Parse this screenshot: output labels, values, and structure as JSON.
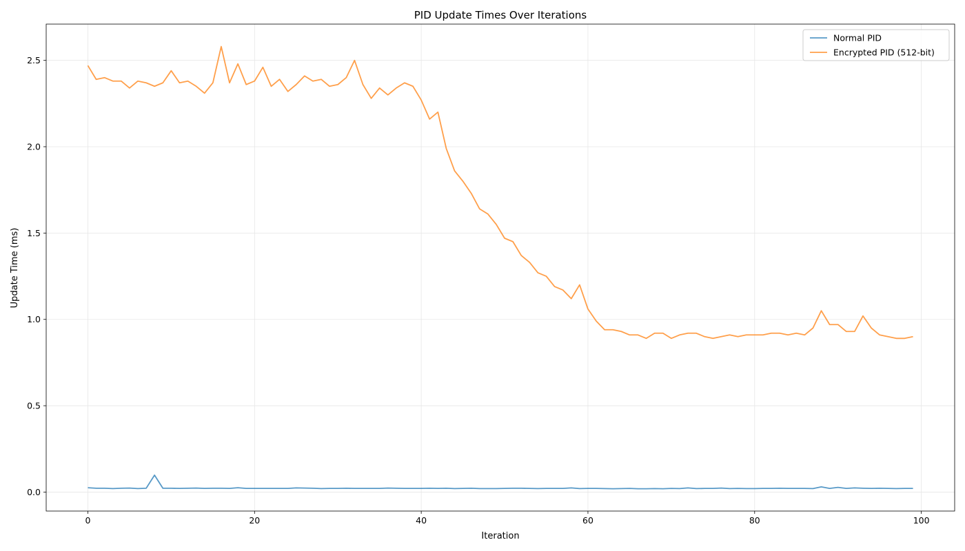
{
  "chart_data": {
    "type": "line",
    "title": "PID Update Times Over Iterations",
    "xlabel": "Iteration",
    "ylabel": "Update Time (ms)",
    "xlim": [
      -5,
      104
    ],
    "ylim": [
      -0.11,
      2.71
    ],
    "xticks": [
      0,
      20,
      40,
      60,
      80,
      100
    ],
    "yticks": [
      0.0,
      0.5,
      1.0,
      1.5,
      2.0,
      2.5
    ],
    "xtick_labels": [
      "0",
      "20",
      "40",
      "60",
      "80",
      "100"
    ],
    "ytick_labels": [
      "0.0",
      "0.5",
      "1.0",
      "1.5",
      "2.0",
      "2.5"
    ],
    "grid": true,
    "legend_position": "top-right",
    "series": [
      {
        "name": "Normal PID",
        "color": "#1f77b4",
        "values": [
          0.025,
          0.022,
          0.022,
          0.02,
          0.022,
          0.023,
          0.02,
          0.022,
          0.098,
          0.022,
          0.022,
          0.021,
          0.022,
          0.023,
          0.021,
          0.022,
          0.022,
          0.021,
          0.025,
          0.021,
          0.021,
          0.021,
          0.021,
          0.021,
          0.021,
          0.024,
          0.023,
          0.022,
          0.02,
          0.021,
          0.021,
          0.022,
          0.021,
          0.021,
          0.021,
          0.021,
          0.023,
          0.022,
          0.021,
          0.021,
          0.021,
          0.022,
          0.021,
          0.022,
          0.02,
          0.021,
          0.022,
          0.02,
          0.02,
          0.02,
          0.021,
          0.022,
          0.022,
          0.021,
          0.02,
          0.021,
          0.021,
          0.021,
          0.024,
          0.02,
          0.021,
          0.021,
          0.02,
          0.019,
          0.02,
          0.021,
          0.019,
          0.019,
          0.02,
          0.019,
          0.021,
          0.02,
          0.024,
          0.02,
          0.021,
          0.021,
          0.023,
          0.02,
          0.021,
          0.02,
          0.02,
          0.021,
          0.021,
          0.022,
          0.021,
          0.021,
          0.021,
          0.02,
          0.03,
          0.021,
          0.027,
          0.021,
          0.024,
          0.022,
          0.021,
          0.022,
          0.021,
          0.02,
          0.021,
          0.021
        ]
      },
      {
        "name": "Encrypted PID (512-bit)",
        "color": "#ff7f0e",
        "values": [
          2.47,
          2.39,
          2.4,
          2.38,
          2.38,
          2.34,
          2.38,
          2.37,
          2.35,
          2.37,
          2.44,
          2.37,
          2.38,
          2.35,
          2.31,
          2.37,
          2.58,
          2.37,
          2.48,
          2.36,
          2.38,
          2.46,
          2.35,
          2.39,
          2.32,
          2.36,
          2.41,
          2.38,
          2.39,
          2.35,
          2.36,
          2.4,
          2.5,
          2.36,
          2.28,
          2.34,
          2.3,
          2.34,
          2.37,
          2.35,
          2.27,
          2.16,
          2.2,
          1.99,
          1.86,
          1.8,
          1.73,
          1.64,
          1.61,
          1.55,
          1.47,
          1.45,
          1.37,
          1.33,
          1.27,
          1.25,
          1.19,
          1.17,
          1.12,
          1.2,
          1.06,
          0.99,
          0.94,
          0.94,
          0.93,
          0.91,
          0.91,
          0.89,
          0.92,
          0.92,
          0.89,
          0.91,
          0.92,
          0.92,
          0.9,
          0.89,
          0.9,
          0.91,
          0.9,
          0.91,
          0.91,
          0.91,
          0.92,
          0.92,
          0.91,
          0.92,
          0.91,
          0.95,
          1.05,
          0.97,
          0.97,
          0.93,
          0.93,
          1.02,
          0.95,
          0.91,
          0.9,
          0.89,
          0.89,
          0.9
        ]
      }
    ]
  }
}
